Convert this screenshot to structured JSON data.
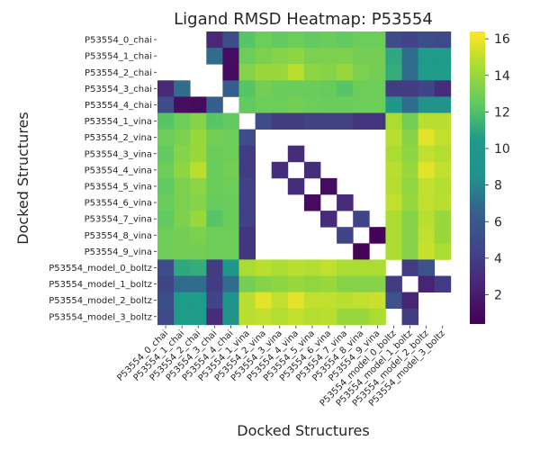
{
  "chart_data": {
    "type": "heatmap",
    "title": "Ligand RMSD Heatmap: P53554",
    "xlabel": "Docked Structures",
    "ylabel": "Docked Structures",
    "labels": [
      "P53554_0_chai",
      "P53554_1_chai",
      "P53554_2_chai",
      "P53554_3_chai",
      "P53554_4_chai",
      "P53554_1_vina",
      "P53554_2_vina",
      "P53554_3_vina",
      "P53554_4_vina",
      "P53554_5_vina",
      "P53554_6_vina",
      "P53554_7_vina",
      "P53554_8_vina",
      "P53554_9_vina",
      "P53554_model_0_boltz",
      "P53554_model_1_boltz",
      "P53554_model_2_boltz",
      "P53554_model_3_boltz"
    ],
    "values": [
      [
        null,
        null,
        null,
        2.8,
        5.0,
        12.2,
        12.8,
        12.5,
        12.8,
        12.5,
        12.7,
        12.5,
        12.8,
        12.8,
        5.0,
        4.5,
        5.2,
        4.7
      ],
      [
        null,
        null,
        null,
        7.0,
        1.2,
        12.8,
        13.2,
        13.5,
        13.7,
        13.2,
        13.2,
        13.3,
        13.0,
        13.0,
        11.0,
        7.0,
        10.5,
        10.5
      ],
      [
        null,
        null,
        null,
        null,
        1.0,
        13.5,
        14.0,
        14.0,
        14.8,
        13.7,
        13.5,
        14.0,
        13.2,
        13.0,
        11.2,
        7.0,
        10.5,
        10.5
      ],
      [
        2.8,
        7.0,
        null,
        null,
        6.5,
        12.2,
        13.0,
        12.7,
        12.7,
        12.7,
        12.6,
        12.2,
        12.8,
        12.8,
        4.0,
        4.0,
        4.5,
        3.0
      ],
      [
        5.0,
        1.2,
        1.0,
        6.5,
        null,
        12.5,
        12.8,
        12.8,
        13.0,
        12.8,
        12.7,
        12.7,
        12.8,
        12.8,
        9.8,
        7.0,
        9.0,
        9.0
      ],
      [
        12.2,
        12.8,
        13.5,
        12.2,
        12.5,
        null,
        5.0,
        4.0,
        4.0,
        4.2,
        4.2,
        4.2,
        3.5,
        3.5,
        14.5,
        13.0,
        14.8,
        14.8
      ],
      [
        12.8,
        13.2,
        14.0,
        13.0,
        12.8,
        5.0,
        null,
        null,
        null,
        null,
        null,
        null,
        null,
        null,
        14.8,
        13.5,
        15.8,
        15.0
      ],
      [
        12.5,
        13.5,
        14.0,
        12.7,
        12.8,
        4.0,
        null,
        null,
        3.0,
        null,
        null,
        null,
        null,
        null,
        14.5,
        13.7,
        15.0,
        14.7
      ],
      [
        12.8,
        13.7,
        14.8,
        12.7,
        13.0,
        4.0,
        null,
        3.0,
        null,
        3.0,
        null,
        null,
        null,
        null,
        14.8,
        14.0,
        15.8,
        15.0
      ],
      [
        12.5,
        13.2,
        13.7,
        12.7,
        12.8,
        4.2,
        null,
        null,
        3.0,
        null,
        1.0,
        null,
        null,
        null,
        14.7,
        13.8,
        15.0,
        14.7
      ],
      [
        12.7,
        13.2,
        13.5,
        12.6,
        12.7,
        4.2,
        null,
        null,
        null,
        1.0,
        null,
        3.0,
        null,
        null,
        15.0,
        14.0,
        15.0,
        14.8
      ],
      [
        12.5,
        13.3,
        14.0,
        12.2,
        12.7,
        4.2,
        null,
        null,
        null,
        null,
        3.0,
        null,
        4.5,
        null,
        14.5,
        13.5,
        14.8,
        14.0
      ],
      [
        12.8,
        13.0,
        13.2,
        12.8,
        12.8,
        3.5,
        null,
        null,
        null,
        null,
        null,
        4.5,
        null,
        0.5,
        14.5,
        13.5,
        15.0,
        14.0
      ],
      [
        12.8,
        13.0,
        13.0,
        12.8,
        12.8,
        3.5,
        null,
        null,
        null,
        null,
        null,
        null,
        0.5,
        null,
        14.5,
        13.5,
        15.2,
        14.5
      ],
      [
        5.0,
        11.0,
        11.2,
        4.0,
        9.8,
        14.5,
        14.8,
        14.5,
        14.8,
        14.7,
        15.0,
        14.5,
        14.5,
        14.5,
        null,
        4.0,
        5.5,
        null
      ],
      [
        4.5,
        7.0,
        7.0,
        4.0,
        7.0,
        13.0,
        13.5,
        13.7,
        14.0,
        13.8,
        14.0,
        13.5,
        13.5,
        13.5,
        4.0,
        null,
        2.5,
        4.0
      ],
      [
        5.2,
        10.5,
        10.5,
        4.5,
        9.0,
        14.8,
        15.8,
        15.0,
        15.8,
        15.0,
        15.0,
        14.8,
        15.0,
        15.2,
        5.5,
        2.5,
        null,
        null
      ],
      [
        4.7,
        10.5,
        10.5,
        3.0,
        9.0,
        14.8,
        15.0,
        14.7,
        15.0,
        14.7,
        14.8,
        14.0,
        14.0,
        14.5,
        null,
        4.0,
        null,
        null
      ]
    ],
    "colorbar": {
      "min": 0.4,
      "max": 16.4,
      "ticks": [
        2,
        4,
        6,
        8,
        10,
        12,
        14,
        16
      ],
      "colormap": "viridis"
    },
    "grid": false
  }
}
